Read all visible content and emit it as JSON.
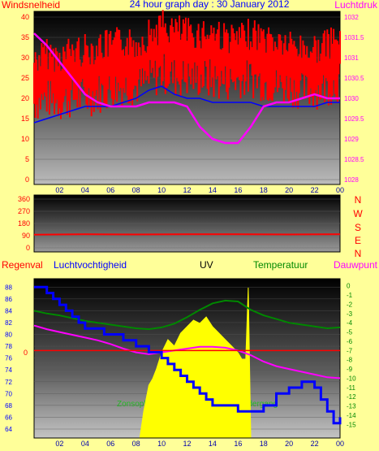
{
  "title": "24 hour graph day : 30 January 2012",
  "colors": {
    "background": "#ffff99",
    "wind": "#ff0000",
    "gust": "#0000ff",
    "pressure": "#ff00ff",
    "humidity": "#0000ff",
    "uv": "#ffff00",
    "temperature": "#008800",
    "dewpoint": "#ff00ff",
    "rain": "#ff0000",
    "direction": "#ff0000"
  },
  "x_ticks": [
    "02",
    "04",
    "06",
    "08",
    "10",
    "12",
    "14",
    "16",
    "18",
    "20",
    "22",
    "00"
  ],
  "chart_data": [
    {
      "type": "line",
      "left_label": "Windsnelheid",
      "right_label": "Luchtdruk",
      "y_left_ticks": [
        "0",
        "5",
        "10",
        "15",
        "20",
        "25",
        "30",
        "35",
        "40"
      ],
      "y_left_range": [
        0,
        40
      ],
      "y_right_ticks": [
        "1028",
        "1028.5",
        "1029",
        "1029.5",
        "1030",
        "1030.5",
        "1031",
        "1031.5",
        "1032"
      ],
      "y_right_range": [
        1028,
        1032
      ],
      "series": [
        {
          "key": "wind",
          "x": [
            0,
            1,
            2,
            3,
            4,
            5,
            6,
            7,
            8,
            9,
            10,
            11,
            12,
            13,
            14,
            15,
            16,
            17,
            18,
            19,
            20,
            21,
            22,
            23,
            24
          ],
          "values": [
            23,
            26,
            24,
            27,
            25,
            27,
            28,
            29,
            28,
            30,
            33,
            32,
            31,
            31,
            32,
            30,
            29,
            31,
            30,
            29,
            28,
            27,
            27,
            28,
            29
          ],
          "low": [
            14,
            15,
            14,
            15,
            15,
            16,
            17,
            18,
            18,
            19,
            21,
            20,
            20,
            20,
            19,
            19,
            20,
            20,
            19,
            18,
            18,
            17,
            17,
            18,
            19
          ],
          "high": [
            33,
            35,
            34,
            36,
            36,
            37,
            37,
            38,
            37,
            40,
            42,
            41,
            40,
            40,
            41,
            39,
            38,
            40,
            39,
            38,
            37,
            36,
            36,
            37,
            39
          ]
        },
        {
          "key": "gust",
          "x": [
            0,
            1,
            2,
            3,
            4,
            5,
            6,
            7,
            8,
            9,
            10,
            11,
            12,
            13,
            14,
            15,
            16,
            17,
            18,
            19,
            20,
            21,
            22,
            23,
            24
          ],
          "values": [
            14,
            15,
            16,
            17,
            18,
            18,
            18,
            19,
            20,
            22,
            23,
            21,
            20,
            20,
            19,
            19,
            19,
            19,
            18,
            18,
            18,
            18,
            18,
            19,
            19
          ]
        },
        {
          "key": "pressure",
          "x": [
            0,
            1,
            2,
            3,
            4,
            5,
            6,
            7,
            8,
            9,
            10,
            11,
            12,
            13,
            14,
            15,
            16,
            17,
            18,
            19,
            20,
            21,
            22,
            23,
            24
          ],
          "values": [
            1031.6,
            1031.3,
            1030.9,
            1030.5,
            1030.1,
            1029.9,
            1029.8,
            1029.8,
            1029.8,
            1029.9,
            1029.9,
            1029.9,
            1029.8,
            1029.3,
            1029.0,
            1028.9,
            1028.9,
            1029.3,
            1029.8,
            1029.9,
            1029.9,
            1030.0,
            1030.1,
            1030.0,
            1030.0
          ]
        }
      ]
    },
    {
      "type": "line",
      "labels": [
        "N",
        "W",
        "S",
        "E",
        "N"
      ],
      "y_ticks": [
        "0",
        "90",
        "180",
        "270",
        "360"
      ],
      "y_range": [
        0,
        360
      ],
      "series": [
        {
          "key": "direction",
          "x": [
            0,
            4,
            8,
            12,
            16,
            20,
            24
          ],
          "values": [
            98,
            100,
            99,
            101,
            100,
            99,
            100
          ]
        }
      ]
    },
    {
      "type": "line",
      "headers": {
        "rain": "Regenval",
        "humidity": "Luchtvochtigheid",
        "uv": "UV",
        "temperature": "Temperatuur",
        "dewpoint": "Dauwpunt"
      },
      "rain_value_label": "0",
      "y_left_ticks": [
        "64",
        "66",
        "68",
        "70",
        "72",
        "74",
        "76",
        "78",
        "80",
        "82",
        "84",
        "86",
        "88"
      ],
      "y_left_range": [
        64,
        89
      ],
      "y_right_ticks": [
        "0",
        "-1",
        "-2",
        "-3",
        "-4",
        "-5",
        "-6",
        "-7",
        "-8",
        "-9",
        "-10",
        "-11",
        "-12",
        "-13",
        "-14",
        "-15"
      ],
      "y_right_range": [
        -15.5,
        0.5
      ],
      "annotations": [
        "Zonsopkomst",
        "Zonsondergang"
      ],
      "series": [
        {
          "key": "rain",
          "x": [
            0,
            24
          ],
          "values": [
            0,
            0
          ]
        },
        {
          "key": "humidity",
          "x": [
            0,
            0.5,
            1,
            1.5,
            2,
            2.5,
            3,
            3.5,
            4,
            4.5,
            5,
            5.5,
            6,
            6.5,
            7,
            7.5,
            8,
            8.5,
            9,
            9.5,
            10,
            10.5,
            11,
            11.5,
            12,
            12.5,
            13,
            13.5,
            14,
            14.5,
            15,
            15.5,
            16,
            16.5,
            17,
            17.5,
            18,
            18.5,
            19,
            19.5,
            20,
            20.5,
            21,
            21.5,
            22,
            22.5,
            23,
            23.5,
            24
          ],
          "values": [
            88,
            88,
            87,
            86,
            85,
            84,
            83,
            82,
            81,
            81,
            81,
            80,
            80,
            80,
            79,
            79,
            78,
            78,
            77,
            77,
            76,
            75,
            74,
            73,
            72,
            71,
            70,
            69,
            68,
            68,
            68,
            68,
            67,
            67,
            67,
            67,
            68,
            68,
            70,
            70,
            71,
            71,
            72,
            72,
            71,
            69,
            67,
            65,
            66
          ]
        },
        {
          "key": "temperature",
          "x": [
            0,
            1,
            2,
            3,
            4,
            5,
            6,
            7,
            8,
            9,
            10,
            11,
            12,
            13,
            14,
            15,
            16,
            17,
            18,
            19,
            20,
            21,
            22,
            23,
            24
          ],
          "values": [
            -2.7,
            -3.0,
            -3.2,
            -3.5,
            -3.8,
            -4.0,
            -4.2,
            -4.4,
            -4.6,
            -4.7,
            -4.5,
            -4.1,
            -3.4,
            -2.6,
            -1.9,
            -1.6,
            -1.7,
            -2.6,
            -3.2,
            -3.6,
            -4.0,
            -4.2,
            -4.4,
            -4.6,
            -4.5
          ]
        },
        {
          "key": "dewpoint",
          "x": [
            0,
            1,
            2,
            3,
            4,
            5,
            6,
            7,
            8,
            9,
            10,
            11,
            12,
            13,
            14,
            15,
            16,
            17,
            18,
            19,
            20,
            21,
            22,
            23,
            24
          ],
          "values": [
            -4.3,
            -4.7,
            -5.0,
            -5.3,
            -5.6,
            -5.9,
            -6.3,
            -6.8,
            -7.2,
            -7.4,
            -7.2,
            -7.0,
            -6.8,
            -6.6,
            -6.6,
            -6.7,
            -7.0,
            -7.5,
            -8.2,
            -8.7,
            -9.0,
            -9.3,
            -9.6,
            -9.9,
            -10.0
          ]
        },
        {
          "key": "uv",
          "x": [
            8.3,
            8.6,
            9,
            9.3,
            9.6,
            10,
            10.5,
            11,
            11.5,
            12,
            12.5,
            13,
            13.5,
            14,
            14.5,
            15,
            15.5,
            16,
            16.3,
            16.6,
            16.8,
            17
          ],
          "values": [
            0,
            4,
            8,
            9,
            10.5,
            13,
            15,
            14,
            16,
            17,
            18,
            17.5,
            18.5,
            17,
            16,
            15,
            14,
            13,
            12,
            12,
            23,
            0
          ]
        }
      ]
    }
  ]
}
